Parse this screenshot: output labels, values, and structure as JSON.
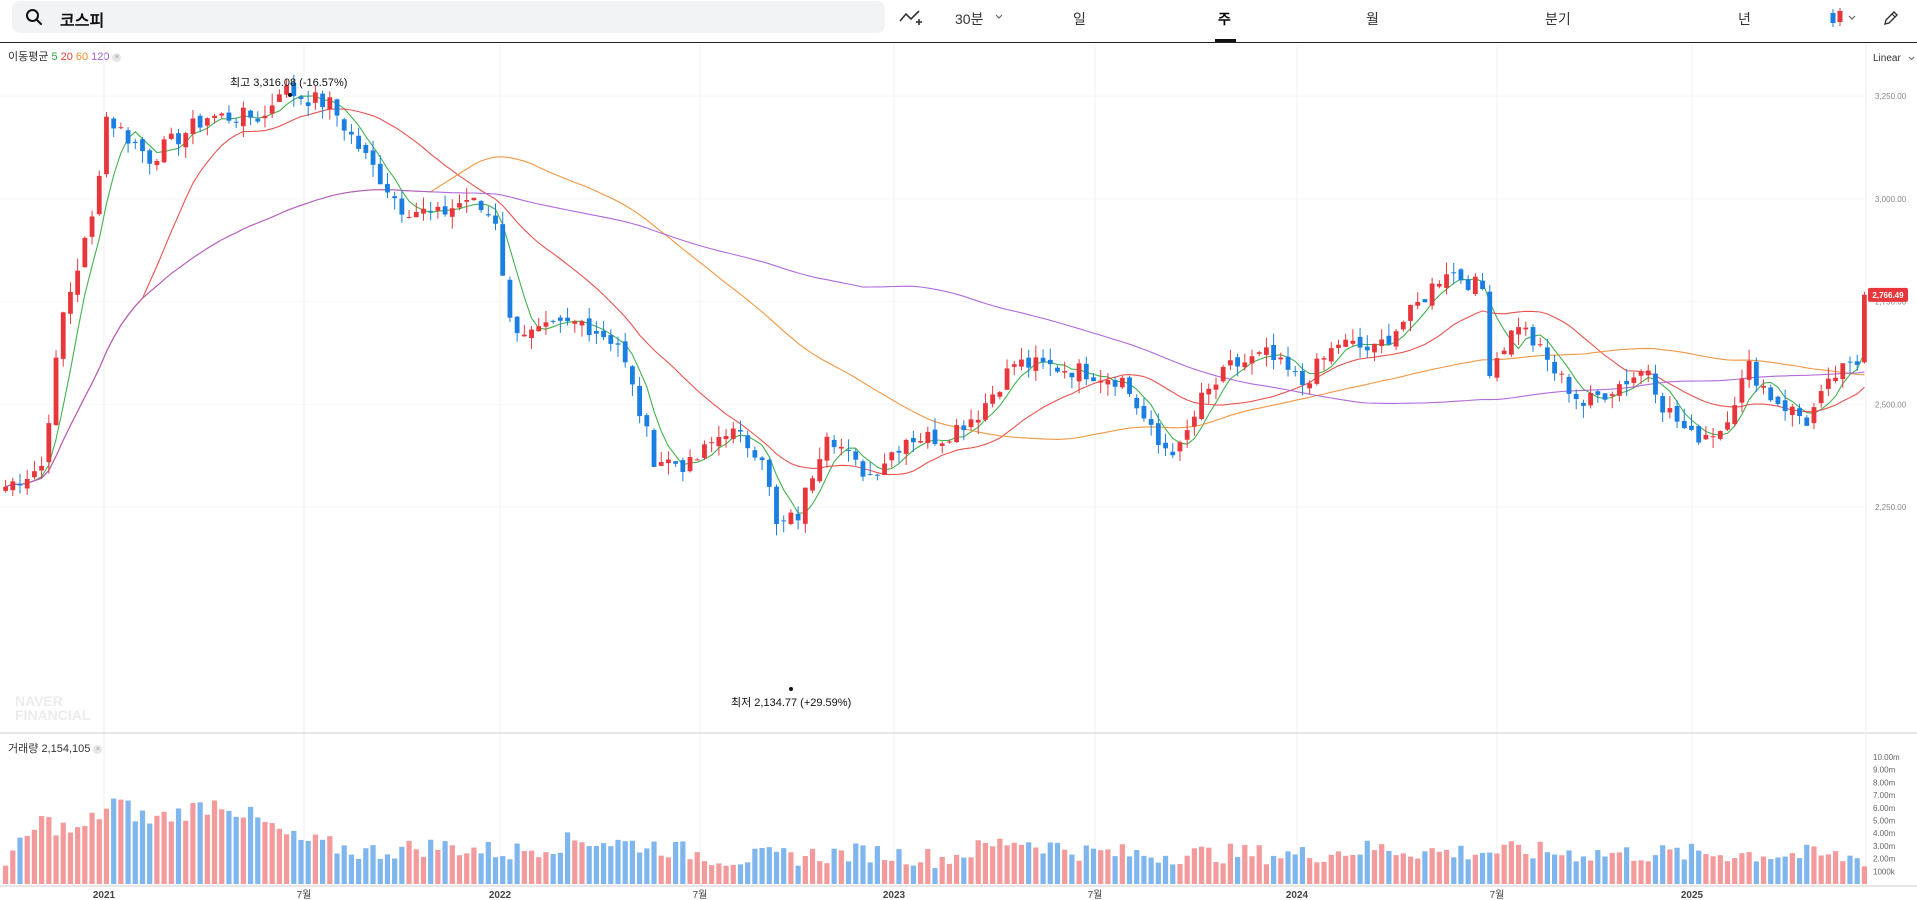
{
  "search": {
    "query": "코스피"
  },
  "toolbar": {
    "interval": "30분",
    "tabs": [
      {
        "label": "일",
        "active": false
      },
      {
        "label": "주",
        "active": true
      },
      {
        "label": "월",
        "active": false
      },
      {
        "label": "분기",
        "active": false
      },
      {
        "label": "년",
        "active": false
      }
    ]
  },
  "legend": {
    "title": "이동평균",
    "ma": [
      {
        "label": "5",
        "color": "#2eaa3c"
      },
      {
        "label": "20",
        "color": "#e8413c"
      },
      {
        "label": "60",
        "color": "#f08c2e"
      },
      {
        "label": "120",
        "color": "#a95bd8"
      }
    ]
  },
  "scale_label": "Linear",
  "volume_legend": {
    "label": "거래량",
    "value": "2,154,105"
  },
  "watermark": {
    "line1": "NAVER",
    "line2": "FINANCIAL"
  },
  "colors": {
    "up": "#e8373c",
    "down": "#1a7fe0",
    "vol_up": "#f39a9c",
    "vol_down": "#7fb6ee"
  },
  "chart_data": {
    "type": "candlestick",
    "title": "코스피",
    "interval": "주",
    "x_ticks": [
      "2021",
      "7월",
      "2022",
      "7월",
      "2023",
      "7월",
      "2024",
      "7월",
      "2025"
    ],
    "y_ticks": [
      "3,250.00",
      "3,000.00",
      "2,750.00",
      "2,500.00",
      "2,250.00"
    ],
    "ylim": [
      2100,
      3380
    ],
    "volume_ticks": [
      "10.00m",
      "9.00m",
      "8.00m",
      "7.00m",
      "6.00m",
      "5.00m",
      "4.00m",
      "3.00m",
      "2.00m",
      "1000k"
    ],
    "current_price": "2,766.49",
    "annotations": {
      "high": {
        "label": "최고",
        "value": "3,316.08",
        "pct": "(-16.57%)",
        "price": 3316.08
      },
      "low": {
        "label": "최저",
        "value": "2,134.77",
        "pct": "(+29.59%)",
        "price": 2134.77
      }
    },
    "close_anchors": [
      [
        0,
        2300
      ],
      [
        5,
        2350
      ],
      [
        8,
        2720
      ],
      [
        12,
        2950
      ],
      [
        14,
        3200
      ],
      [
        20,
        3100
      ],
      [
        28,
        3200
      ],
      [
        36,
        3200
      ],
      [
        38,
        3270
      ],
      [
        41,
        3250
      ],
      [
        45,
        3230
      ],
      [
        50,
        3100
      ],
      [
        55,
        2980
      ],
      [
        60,
        2960
      ],
      [
        64,
        3000
      ],
      [
        68,
        2950
      ],
      [
        70,
        2700
      ],
      [
        73,
        2670
      ],
      [
        80,
        2700
      ],
      [
        85,
        2650
      ],
      [
        90,
        2370
      ],
      [
        95,
        2350
      ],
      [
        100,
        2440
      ],
      [
        105,
        2380
      ],
      [
        107,
        2200
      ],
      [
        110,
        2230
      ],
      [
        114,
        2440
      ],
      [
        118,
        2350
      ],
      [
        120,
        2330
      ],
      [
        125,
        2420
      ],
      [
        130,
        2420
      ],
      [
        135,
        2480
      ],
      [
        140,
        2600
      ],
      [
        146,
        2590
      ],
      [
        150,
        2580
      ],
      [
        155,
        2560
      ],
      [
        160,
        2400
      ],
      [
        163,
        2390
      ],
      [
        166,
        2510
      ],
      [
        170,
        2590
      ],
      [
        175,
        2620
      ],
      [
        180,
        2550
      ],
      [
        185,
        2650
      ],
      [
        190,
        2630
      ],
      [
        195,
        2720
      ],
      [
        200,
        2830
      ],
      [
        205,
        2780
      ],
      [
        206,
        2590
      ],
      [
        210,
        2700
      ],
      [
        215,
        2580
      ],
      [
        219,
        2500
      ],
      [
        223,
        2540
      ],
      [
        228,
        2590
      ],
      [
        230,
        2500
      ],
      [
        234,
        2420
      ],
      [
        238,
        2440
      ],
      [
        242,
        2590
      ],
      [
        245,
        2520
      ],
      [
        250,
        2460
      ],
      [
        254,
        2570
      ],
      [
        257,
        2600
      ],
      [
        258,
        2766.49
      ]
    ],
    "ma_periods": [
      5,
      20,
      60,
      120
    ],
    "volume_anchors": [
      [
        0,
        1.5
      ],
      [
        5,
        5.0
      ],
      [
        10,
        4.0
      ],
      [
        15,
        6.5
      ],
      [
        20,
        5.0
      ],
      [
        30,
        6.5
      ],
      [
        40,
        3.5
      ],
      [
        50,
        2.5
      ],
      [
        60,
        3.0
      ],
      [
        70,
        2.5
      ],
      [
        80,
        3.5
      ],
      [
        90,
        3.0
      ],
      [
        100,
        2.0
      ],
      [
        110,
        2.2
      ],
      [
        120,
        2.5
      ],
      [
        130,
        2.0
      ],
      [
        140,
        3.5
      ],
      [
        150,
        2.5
      ],
      [
        160,
        2.3
      ],
      [
        170,
        2.4
      ],
      [
        180,
        2.3
      ],
      [
        190,
        2.8
      ],
      [
        200,
        2.5
      ],
      [
        210,
        2.6
      ],
      [
        220,
        2.4
      ],
      [
        230,
        2.4
      ],
      [
        240,
        2.4
      ],
      [
        250,
        2.3
      ],
      [
        258,
        2.0
      ]
    ]
  }
}
